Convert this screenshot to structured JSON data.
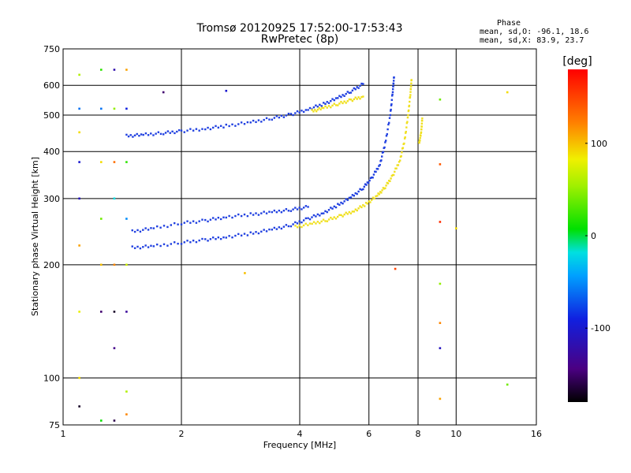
{
  "chart_data": {
    "type": "scatter",
    "title": "Tromsø 20120925 17:52:00-17:53:43",
    "subtitle": "RwPretec (8p)",
    "xlabel": "Frequency [MHz]",
    "ylabel": "Stationary phase Virtual Height [km]",
    "x_scale": "log",
    "y_scale": "log",
    "xlim": [
      1,
      16
    ],
    "ylim": [
      75,
      750
    ],
    "x_ticks": [
      "1",
      "2",
      "4",
      "6",
      "8",
      "10",
      "16"
    ],
    "x_tick_values": [
      1,
      2,
      4,
      6,
      8,
      10,
      16
    ],
    "y_ticks": [
      "750",
      "600",
      "500",
      "400",
      "300",
      "200",
      "100",
      "75"
    ],
    "y_tick_values": [
      750,
      600,
      500,
      400,
      300,
      200,
      100,
      75
    ],
    "grid": true,
    "stats": {
      "heading": "Phase",
      "line_o": "mean, sd,O: -96.1, 18.6",
      "line_x": "mean, sd,X:  83.9, 23.7"
    },
    "colorbar": {
      "label": "[deg]",
      "range": [
        -180,
        180
      ],
      "ticks": [
        "100",
        "0",
        "-100"
      ],
      "tick_values": [
        100,
        0,
        -100
      ]
    },
    "series": [
      {
        "mode": "O",
        "phase_deg": -96,
        "color": "#2040e0",
        "traces": [
          {
            "f": [
              1.45,
              1.6,
              1.8,
              2.0,
              2.3,
              2.6,
              3.0,
              3.4,
              3.8,
              4.2,
              4.6,
              5.0,
              5.4,
              5.8
            ],
            "h": [
              440,
              443,
              448,
              453,
              460,
              468,
              478,
              490,
              502,
              518,
              535,
              555,
              578,
              605
            ]
          },
          {
            "f": [
              1.5,
              1.7,
              2.0,
              2.3,
              2.6,
              3.0,
              3.4,
              3.8,
              4.2,
              4.6,
              5.0,
              5.4,
              5.8,
              6.1,
              6.4,
              6.6,
              6.8,
              6.9,
              6.95
            ],
            "h": [
              222,
              224,
              229,
              233,
              237,
              242,
              248,
              255,
              265,
              275,
              288,
              302,
              320,
              340,
              370,
              420,
              500,
              580,
              630
            ]
          },
          {
            "f": [
              1.5,
              1.7,
              2.0,
              2.3,
              2.6,
              3.0,
              3.4,
              3.8,
              4.2
            ],
            "h": [
              245,
              250,
              258,
              262,
              268,
              272,
              276,
              280,
              285
            ]
          }
        ]
      },
      {
        "mode": "X",
        "phase_deg": 84,
        "color": "#f0e020",
        "traces": [
          {
            "f": [
              4.3,
              4.6,
              5.0,
              5.4,
              5.8
            ],
            "h": [
              512,
              522,
              535,
              548,
              560
            ]
          },
          {
            "f": [
              3.9,
              4.3,
              4.7,
              5.1,
              5.5,
              5.9,
              6.3,
              6.6,
              6.9,
              7.2,
              7.4,
              7.55,
              7.65,
              7.7
            ],
            "h": [
              252,
              257,
              263,
              270,
              278,
              290,
              305,
              322,
              345,
              380,
              430,
              500,
              570,
              620
            ]
          },
          {
            "f": [
              8.05,
              8.15,
              8.2
            ],
            "h": [
              420,
              450,
              490
            ]
          }
        ]
      },
      {
        "mode": "scattered",
        "points": [
          {
            "f": 1.1,
            "h": 640,
            "phase": 60
          },
          {
            "f": 1.1,
            "h": 520,
            "phase": -60
          },
          {
            "f": 1.1,
            "h": 450,
            "phase": 90
          },
          {
            "f": 1.1,
            "h": 375,
            "phase": -100
          },
          {
            "f": 1.1,
            "h": 300,
            "phase": -110
          },
          {
            "f": 1.1,
            "h": 225,
            "phase": 110
          },
          {
            "f": 1.1,
            "h": 150,
            "phase": 80
          },
          {
            "f": 1.1,
            "h": 100,
            "phase": 90
          },
          {
            "f": 1.1,
            "h": 84,
            "phase": -170
          },
          {
            "f": 1.25,
            "h": 660,
            "phase": 20
          },
          {
            "f": 1.25,
            "h": 520,
            "phase": -60
          },
          {
            "f": 1.25,
            "h": 375,
            "phase": 90
          },
          {
            "f": 1.25,
            "h": 265,
            "phase": 40
          },
          {
            "f": 1.25,
            "h": 200,
            "phase": 100
          },
          {
            "f": 1.25,
            "h": 150,
            "phase": -150
          },
          {
            "f": 1.25,
            "h": 77,
            "phase": 10
          },
          {
            "f": 1.35,
            "h": 660,
            "phase": -120
          },
          {
            "f": 1.35,
            "h": 520,
            "phase": 50
          },
          {
            "f": 1.35,
            "h": 375,
            "phase": 130
          },
          {
            "f": 1.35,
            "h": 300,
            "phase": -20
          },
          {
            "f": 1.35,
            "h": 200,
            "phase": 120
          },
          {
            "f": 1.35,
            "h": 150,
            "phase": -170
          },
          {
            "f": 1.35,
            "h": 120,
            "phase": -140
          },
          {
            "f": 1.35,
            "h": 77,
            "phase": -160
          },
          {
            "f": 1.45,
            "h": 660,
            "phase": 110
          },
          {
            "f": 1.45,
            "h": 520,
            "phase": -90
          },
          {
            "f": 1.45,
            "h": 375,
            "phase": 20
          },
          {
            "f": 1.45,
            "h": 265,
            "phase": -50
          },
          {
            "f": 1.45,
            "h": 200,
            "phase": 70
          },
          {
            "f": 1.45,
            "h": 150,
            "phase": -130
          },
          {
            "f": 1.45,
            "h": 92,
            "phase": 60
          },
          {
            "f": 1.45,
            "h": 80,
            "phase": 120
          },
          {
            "f": 1.8,
            "h": 575,
            "phase": -150
          },
          {
            "f": 2.6,
            "h": 580,
            "phase": -100
          },
          {
            "f": 9.1,
            "h": 550,
            "phase": 40
          },
          {
            "f": 9.1,
            "h": 370,
            "phase": 140
          },
          {
            "f": 9.1,
            "h": 260,
            "phase": 160
          },
          {
            "f": 9.1,
            "h": 178,
            "phase": 50
          },
          {
            "f": 9.1,
            "h": 140,
            "phase": 120
          },
          {
            "f": 9.1,
            "h": 120,
            "phase": -110
          },
          {
            "f": 9.1,
            "h": 88,
            "phase": 110
          },
          {
            "f": 10.0,
            "h": 250,
            "phase": 90
          },
          {
            "f": 13.5,
            "h": 575,
            "phase": 90
          },
          {
            "f": 13.5,
            "h": 96,
            "phase": 40
          },
          {
            "f": 7.0,
            "h": 195,
            "phase": 150
          },
          {
            "f": 2.9,
            "h": 190,
            "phase": 100
          }
        ]
      }
    ]
  }
}
